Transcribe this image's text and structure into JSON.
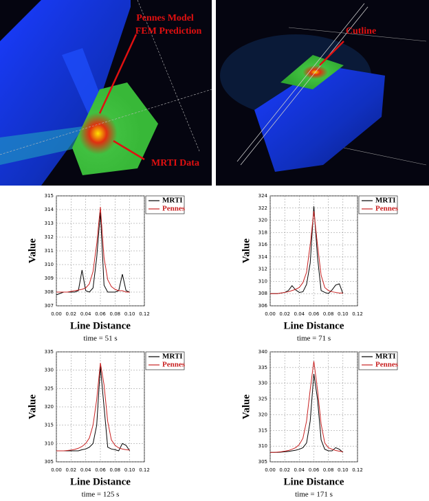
{
  "figures": {
    "left_render": {
      "labels": [
        "Pennes Model",
        "FEM Prediction",
        "MRTI Data"
      ]
    },
    "right_render": {
      "labels": [
        "Cutline"
      ]
    }
  },
  "chart_data": [
    {
      "type": "line",
      "xlabel": "Line Distance",
      "ylabel": "Value",
      "caption": "time = 51 s",
      "x": [
        0,
        0.005,
        0.01,
        0.015,
        0.02,
        0.025,
        0.03,
        0.035,
        0.04,
        0.045,
        0.05,
        0.055,
        0.06,
        0.065,
        0.07,
        0.075,
        0.08,
        0.085,
        0.09,
        0.095,
        0.1
      ],
      "xlim": [
        0,
        0.12
      ],
      "xticks": [
        {
          "value": 0,
          "label": "0.00"
        },
        0.02,
        0.04,
        0.06,
        0.08,
        {
          "value": 0.1,
          "label": "0.10"
        },
        0.12
      ],
      "ylim": [
        307,
        315
      ],
      "yticks": [
        307,
        308,
        309,
        310,
        311,
        312,
        313,
        314,
        315
      ],
      "grid": true,
      "series": [
        {
          "name": "MRTI",
          "color": "#000000",
          "values": [
            307.8,
            307.9,
            308.0,
            308.0,
            308.0,
            308.0,
            308.1,
            309.6,
            308.1,
            308.0,
            308.3,
            310.5,
            313.8,
            308.5,
            308.0,
            308.0,
            308.0,
            308.1,
            309.3,
            308.1,
            308.0
          ]
        },
        {
          "name": "Pennes",
          "color": "#c82020",
          "values": [
            308.0,
            308.0,
            308.0,
            308.0,
            308.05,
            308.1,
            308.15,
            308.2,
            308.3,
            308.6,
            309.5,
            311.5,
            314.2,
            310.5,
            308.9,
            308.4,
            308.2,
            308.1,
            308.1,
            308.0,
            308.0
          ]
        }
      ]
    },
    {
      "type": "line",
      "xlabel": "Line Distance",
      "ylabel": "Value",
      "caption": "time = 71 s",
      "x": [
        0,
        0.005,
        0.01,
        0.015,
        0.02,
        0.025,
        0.03,
        0.035,
        0.04,
        0.045,
        0.05,
        0.055,
        0.06,
        0.065,
        0.07,
        0.075,
        0.08,
        0.085,
        0.09,
        0.095,
        0.1
      ],
      "xlim": [
        0,
        0.12
      ],
      "xticks": [
        {
          "value": 0,
          "label": "0.00"
        },
        0.02,
        0.04,
        0.06,
        0.08,
        {
          "value": 0.1,
          "label": "0.10"
        },
        0.12
      ],
      "ylim": [
        306,
        324
      ],
      "yticks": [
        306,
        308,
        310,
        312,
        314,
        316,
        318,
        320,
        322,
        324
      ],
      "grid": true,
      "series": [
        {
          "name": "MRTI",
          "color": "#000000",
          "values": [
            308,
            308,
            308,
            308.1,
            308.2,
            308.5,
            309.3,
            308.6,
            308.2,
            308.3,
            309.5,
            313,
            322.3,
            314,
            308.5,
            308.2,
            308,
            308.6,
            309.4,
            309.6,
            308
          ]
        },
        {
          "name": "Pennes",
          "color": "#c82020",
          "values": [
            308,
            308,
            308,
            308.1,
            308.2,
            308.3,
            308.5,
            308.7,
            309,
            309.8,
            311.5,
            316,
            321.5,
            316,
            311,
            309,
            308.5,
            308.3,
            308.2,
            308.1,
            308.1
          ]
        }
      ]
    },
    {
      "type": "line",
      "xlabel": "Line Distance",
      "ylabel": "Value",
      "caption": "time = 125 s",
      "x": [
        0,
        0.005,
        0.01,
        0.015,
        0.02,
        0.025,
        0.03,
        0.035,
        0.04,
        0.045,
        0.05,
        0.055,
        0.06,
        0.065,
        0.07,
        0.075,
        0.08,
        0.085,
        0.09,
        0.095,
        0.1
      ],
      "xlim": [
        0,
        0.12
      ],
      "xticks": [
        {
          "value": 0,
          "label": "0.00"
        },
        0.02,
        0.04,
        0.06,
        0.08,
        {
          "value": 0.1,
          "label": "0.10"
        },
        0.12
      ],
      "ylim": [
        305,
        335
      ],
      "yticks": [
        305,
        310,
        315,
        320,
        325,
        330,
        335
      ],
      "grid": true,
      "series": [
        {
          "name": "MRTI",
          "color": "#000000",
          "values": [
            308,
            308,
            308,
            308,
            308,
            308,
            308,
            308.3,
            308.5,
            309,
            310,
            315,
            331,
            320,
            309,
            308.5,
            308.3,
            308,
            310,
            309.5,
            308
          ]
        },
        {
          "name": "Pennes",
          "color": "#c82020",
          "values": [
            308,
            308,
            308,
            308.1,
            308.2,
            308.4,
            308.7,
            309.2,
            310,
            311.5,
            315,
            322,
            332,
            326,
            316,
            311,
            309.5,
            308.8,
            308.5,
            308.3,
            308.2
          ]
        }
      ]
    },
    {
      "type": "line",
      "xlabel": "Line Distance",
      "ylabel": "Value",
      "caption": "time = 171 s",
      "x": [
        0,
        0.005,
        0.01,
        0.015,
        0.02,
        0.025,
        0.03,
        0.035,
        0.04,
        0.045,
        0.05,
        0.055,
        0.06,
        0.065,
        0.07,
        0.075,
        0.08,
        0.085,
        0.09,
        0.095,
        0.1
      ],
      "xlim": [
        0,
        0.12
      ],
      "xticks": [
        {
          "value": 0,
          "label": "0.00"
        },
        0.02,
        0.04,
        0.06,
        0.08,
        {
          "value": 0.1,
          "label": "0.10"
        },
        0.12
      ],
      "ylim": [
        305,
        340
      ],
      "yticks": [
        305,
        310,
        315,
        320,
        325,
        330,
        335,
        340
      ],
      "grid": true,
      "series": [
        {
          "name": "MRTI",
          "color": "#000000",
          "values": [
            308,
            308,
            308,
            308.1,
            308.2,
            308.3,
            308.5,
            308.7,
            309,
            309.5,
            311,
            318,
            333,
            325,
            312,
            309,
            308.5,
            308.5,
            309.5,
            309,
            308
          ]
        },
        {
          "name": "Pennes",
          "color": "#c82020",
          "values": [
            308,
            308,
            308.1,
            308.2,
            308.4,
            308.6,
            309,
            309.5,
            310.5,
            312.5,
            318,
            328,
            337,
            328,
            317,
            311,
            309.5,
            309,
            308.6,
            308.4,
            308.2
          ]
        }
      ]
    }
  ]
}
